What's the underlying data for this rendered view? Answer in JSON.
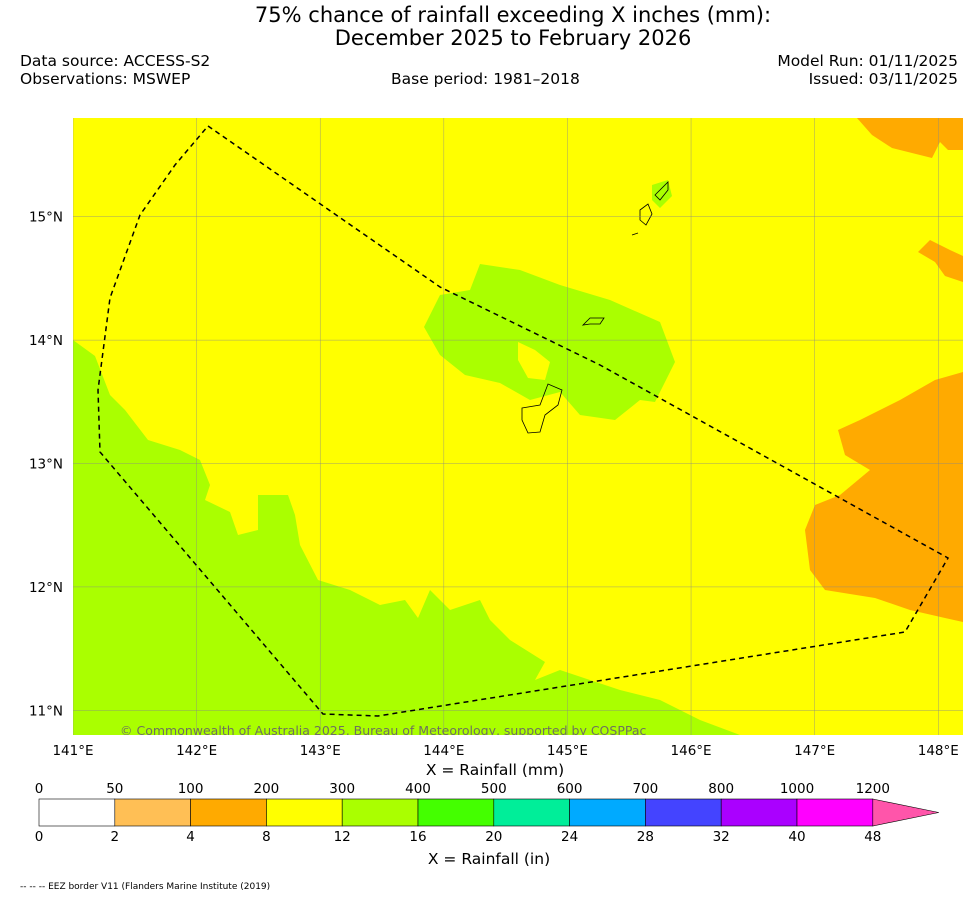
{
  "title": {
    "line1": "75% chance of rainfall exceeding X inches (mm):",
    "line2": "December 2025 to February 2026"
  },
  "meta": {
    "data_source": "Data source: ACCESS-S2",
    "observations": "Observations: MSWEP",
    "base_period": "Base period: 1981–2018",
    "model_run": "Model Run: 01/11/2025",
    "issued": "Issued: 03/11/2025"
  },
  "map": {
    "lon_labels": [
      "141°E",
      "142°E",
      "143°E",
      "144°E",
      "145°E",
      "146°E",
      "147°E",
      "148°E"
    ],
    "lat_labels": [
      "15°N",
      "14°N",
      "13°N",
      "12°N",
      "11°N"
    ],
    "lon_values": [
      141,
      142,
      143,
      144,
      145,
      146,
      147,
      148
    ],
    "lat_values": [
      15,
      14,
      13,
      12,
      11
    ],
    "extent": {
      "lon_min": 141,
      "lon_max": 148.2,
      "lat_min": 10.8,
      "lat_max": 15.8
    },
    "copyright": "© Commonwealth of Australia 2025, Bureau of Meteorology, supported by COSPPac",
    "xlabel": "X = Rainfall (mm)"
  },
  "colorbar": {
    "mm_labels": [
      "0",
      "50",
      "100",
      "200",
      "300",
      "400",
      "500",
      "600",
      "700",
      "800",
      "1000",
      "1200"
    ],
    "in_labels": [
      "0",
      "2",
      "4",
      "8",
      "12",
      "16",
      "20",
      "24",
      "28",
      "32",
      "40",
      "48"
    ],
    "colors": [
      "#ffffff",
      "#ffbf55",
      "#ffaa00",
      "#ffff00",
      "#aaff00",
      "#44ff00",
      "#00ee99",
      "#00aaff",
      "#4444ff",
      "#aa00ff",
      "#ff00ff",
      "#ff55aa"
    ],
    "xlabel": "X = Rainfall (in)"
  },
  "legend_note": "-- -- -- EEZ border V11 (Flanders Marine Institute (2019)"
}
